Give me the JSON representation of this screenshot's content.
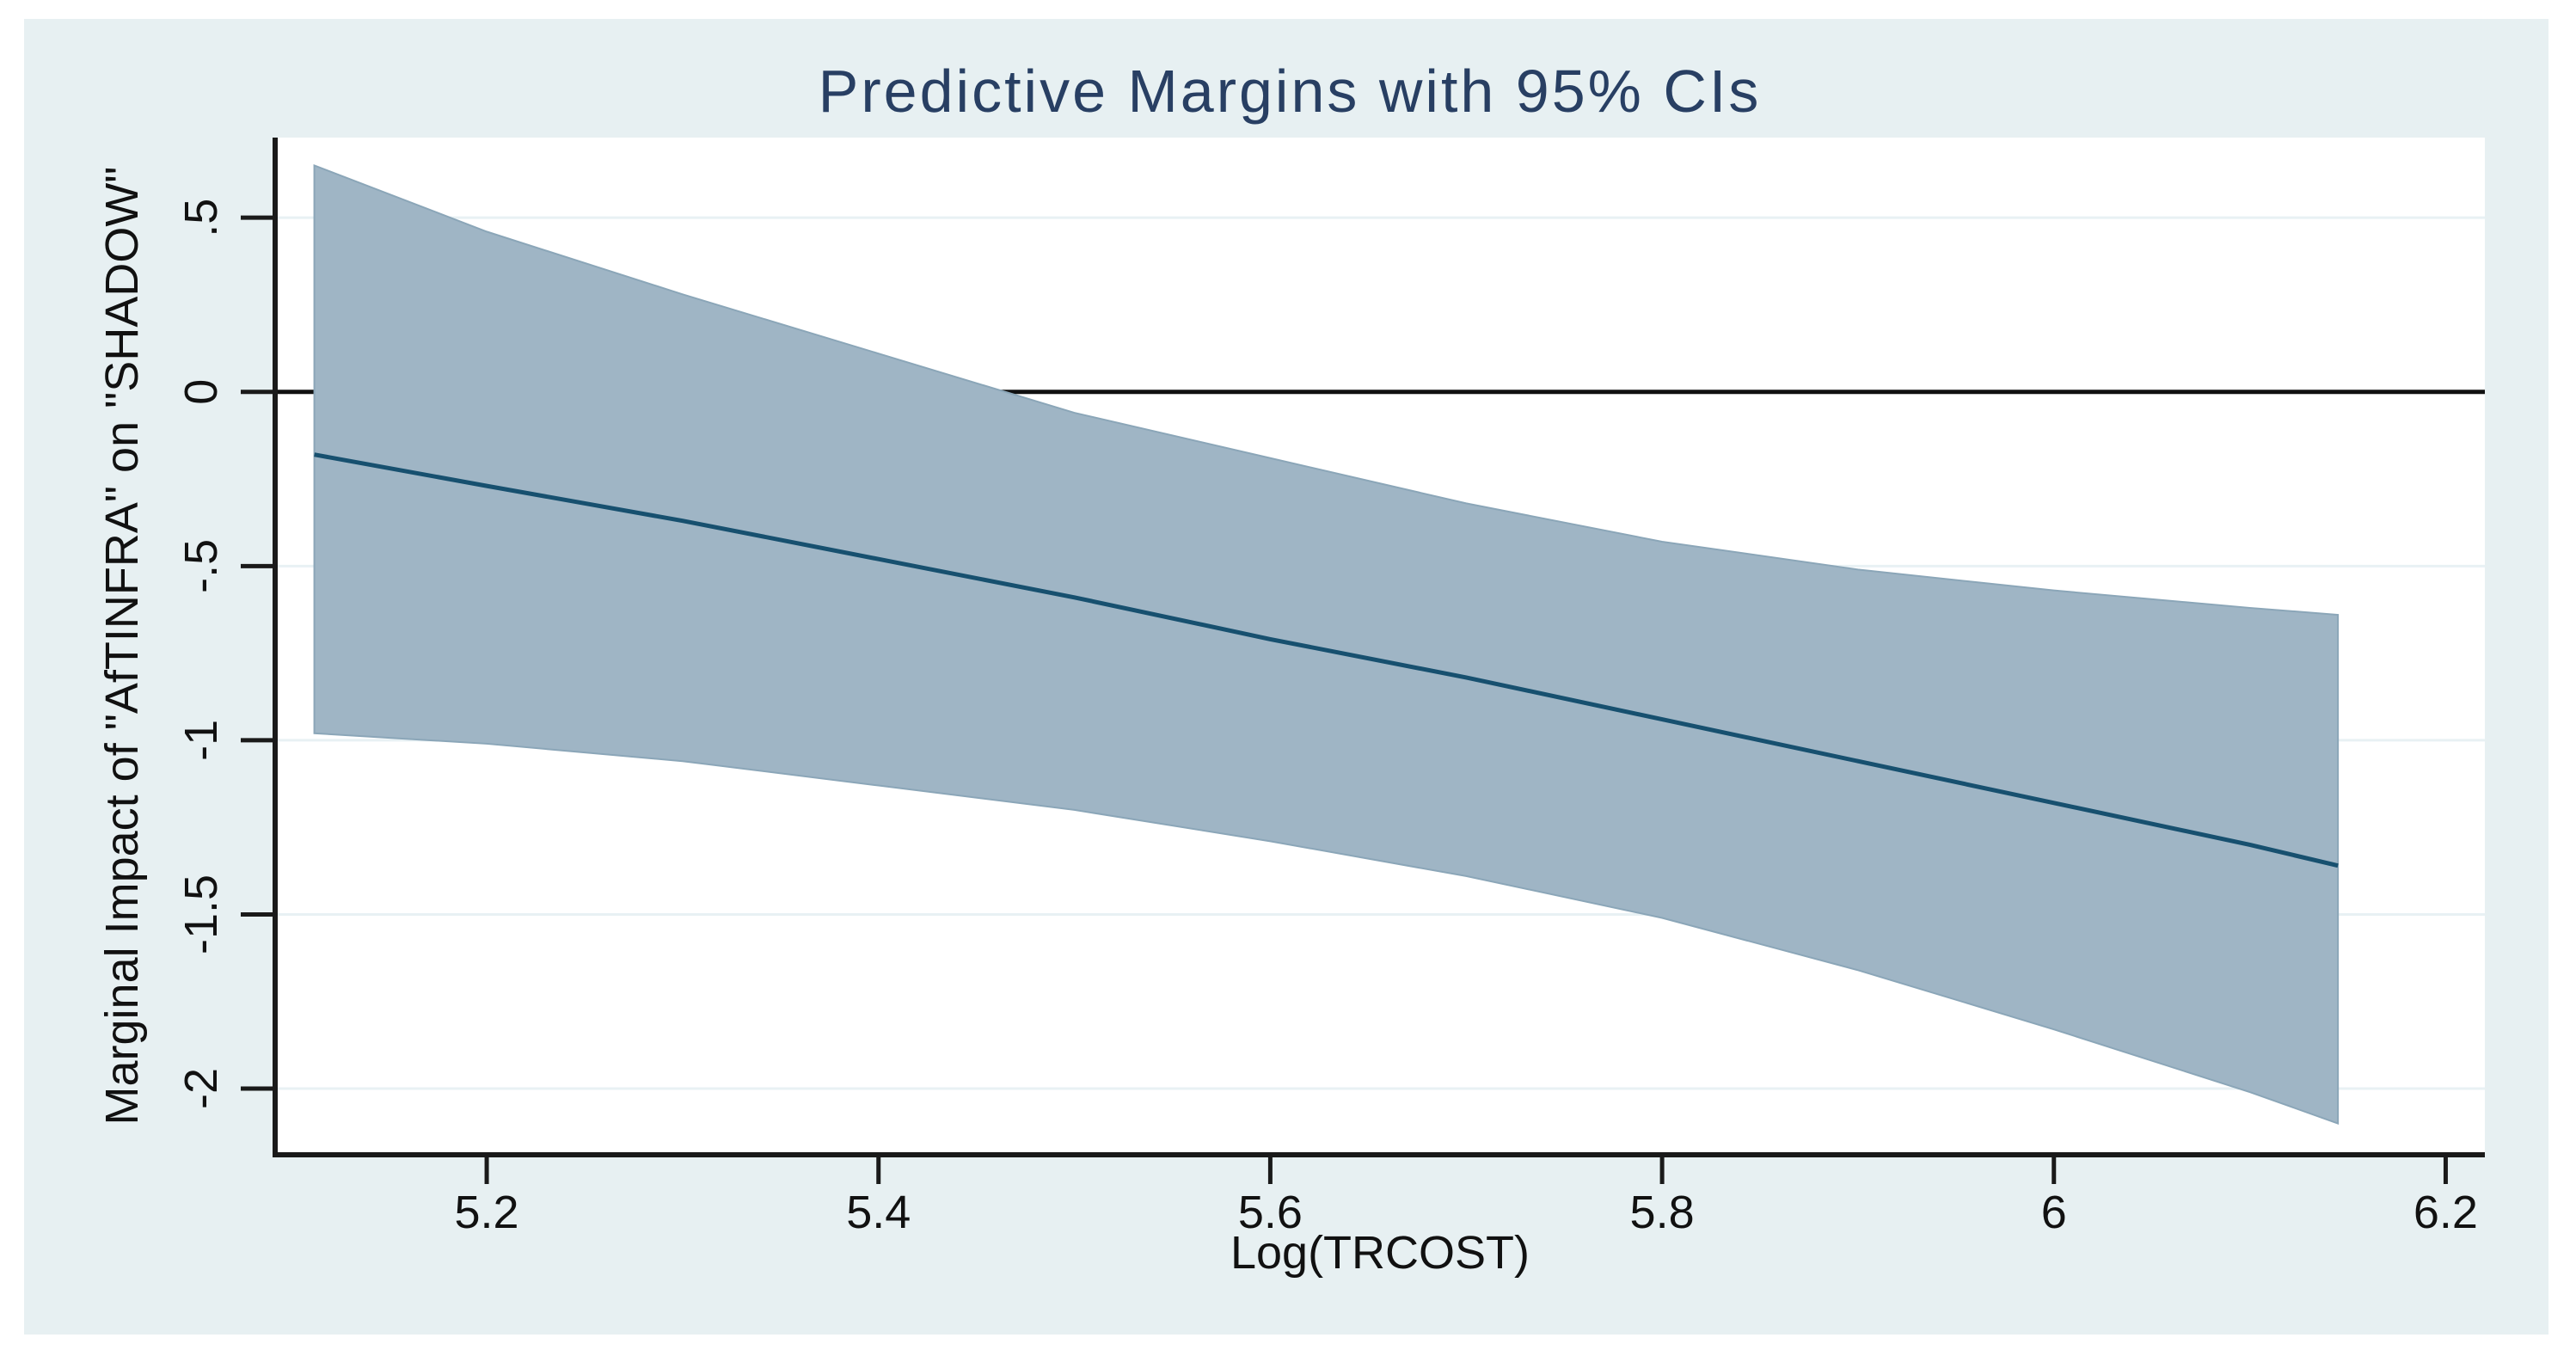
{
  "figure": {
    "title": "Predictive Margins with 95% CIs"
  },
  "chart_data": {
    "type": "line",
    "title": "Predictive Margins with 95% CIs",
    "xlabel": "Log(TRCOST)",
    "ylabel": "Marginal Impact of \"AfTINFRA\" on \"SHADOW\"",
    "xlim": [
      5.092,
      6.22
    ],
    "ylim": [
      -2.19,
      0.73
    ],
    "grid": "horizontal",
    "legend": "none",
    "reference_line_y": 0,
    "x_ticks": [
      {
        "value": 5.2,
        "label": "5.2"
      },
      {
        "value": 5.4,
        "label": "5.4"
      },
      {
        "value": 5.6,
        "label": "5.6"
      },
      {
        "value": 5.8,
        "label": "5.8"
      },
      {
        "value": 6.0,
        "label": "6"
      },
      {
        "value": 6.2,
        "label": "6.2"
      }
    ],
    "y_ticks": [
      {
        "value": 0.5,
        "label": ".5"
      },
      {
        "value": 0,
        "label": "0"
      },
      {
        "value": -0.5,
        "label": "-.5"
      },
      {
        "value": -1,
        "label": "-1"
      },
      {
        "value": -1.5,
        "label": "-1.5"
      },
      {
        "value": -2,
        "label": "-2"
      }
    ],
    "series": {
      "x": [
        5.112,
        5.2,
        5.3,
        5.4,
        5.5,
        5.6,
        5.7,
        5.8,
        5.9,
        6.0,
        6.1,
        6.145
      ],
      "margin": [
        -0.18,
        -0.27,
        -0.37,
        -0.48,
        -0.59,
        -0.71,
        -0.82,
        -0.94,
        -1.06,
        -1.18,
        -1.3,
        -1.36
      ],
      "ci_upper": [
        0.65,
        0.46,
        0.28,
        0.11,
        -0.06,
        -0.19,
        -0.32,
        -0.43,
        -0.51,
        -0.57,
        -0.62,
        -0.64
      ],
      "ci_lower": [
        -0.98,
        -1.01,
        -1.06,
        -1.13,
        -1.2,
        -1.29,
        -1.39,
        -1.51,
        -1.66,
        -1.83,
        -2.01,
        -2.1
      ]
    },
    "series_names": {
      "margin": "Predictive margin",
      "band": "95% confidence interval"
    },
    "colors": {
      "figure_background": "#e7f0f2",
      "plot_background": "#ffffff",
      "gridline": "#e8f1f4",
      "band_fill": "#9fb5c5",
      "band_edge": "#8ba6b8",
      "margin_line": "#17506f",
      "axis_line": "#1a1a1a",
      "zero_line": "#111111",
      "title_color": "#283f63",
      "tick_text": "#111111"
    }
  }
}
